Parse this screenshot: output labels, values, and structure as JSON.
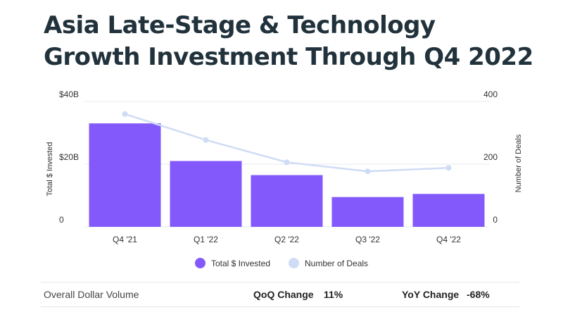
{
  "title": "Asia Late-Stage & Technology Growth Investment Through Q4 2022",
  "colors": {
    "bar": "#8459fb",
    "line": "#cfdcf5",
    "grid": "#e6e9ee",
    "text": "#333333"
  },
  "chart_data": {
    "type": "bar",
    "categories": [
      "Q4 '21",
      "Q1 '22",
      "Q2 '22",
      "Q3 '22",
      "Q4 '22"
    ],
    "series": [
      {
        "name": "Total $ Invested",
        "type": "bar",
        "axis": "left",
        "values": [
          33,
          21,
          16.5,
          9.5,
          10.5
        ]
      },
      {
        "name": "Number of Deals",
        "type": "line",
        "axis": "right",
        "values": [
          360,
          277,
          206,
          177,
          188
        ]
      }
    ],
    "ylabel": "Total $ Invested",
    "y2label": "Number of Deals",
    "ylim": [
      0,
      40
    ],
    "y2lim": [
      0,
      400
    ],
    "yticks": [
      0,
      20,
      40
    ],
    "ytick_labels": [
      "0",
      "$20B",
      "$40B"
    ],
    "y2ticks": [
      0,
      200,
      400
    ],
    "y2tick_labels": [
      "0",
      "200",
      "400"
    ],
    "grid": true,
    "legend": "bottom"
  },
  "summary": {
    "label": "Overall Dollar Volume",
    "qoq_label": "QoQ Change",
    "qoq_value": "11%",
    "yoy_label": "YoY Change",
    "yoy_value": "-68%"
  }
}
